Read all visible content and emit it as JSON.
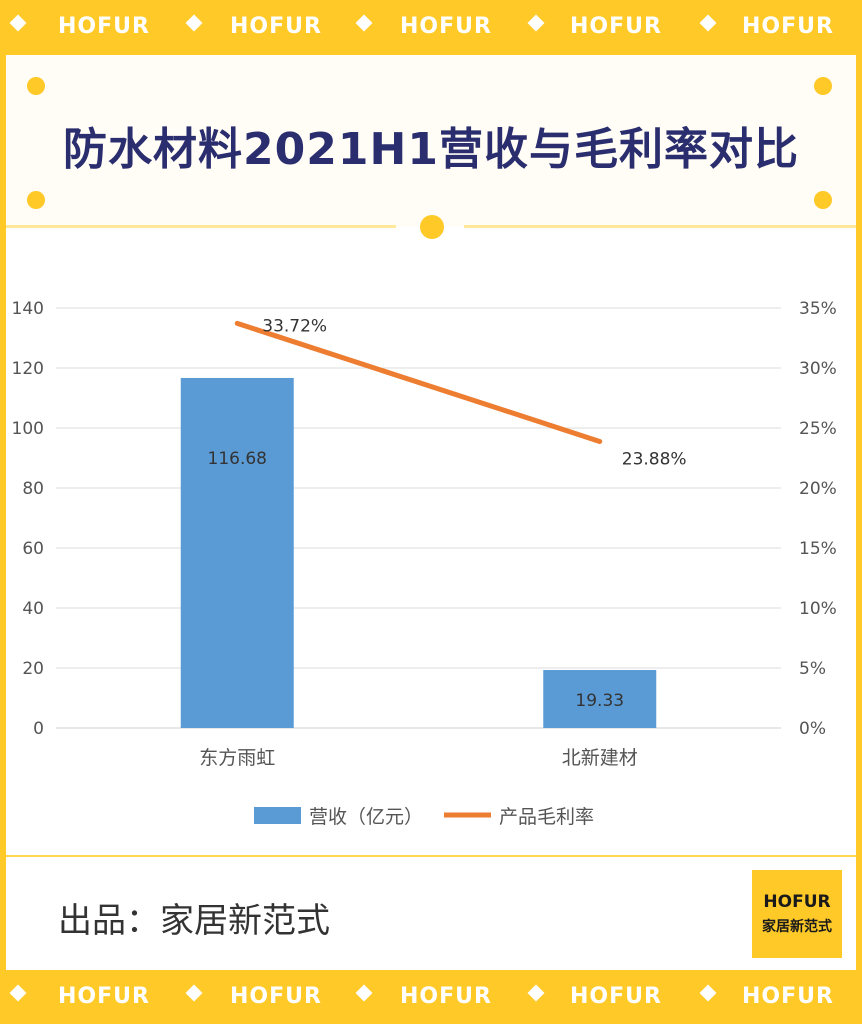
{
  "band": {
    "word": "HOFUR"
  },
  "title": "防水材料2021H1营收与毛利率对比",
  "footer": {
    "credit": "出品：家居新范式",
    "logo_top": "HOFUR",
    "logo_bottom": "家居新范式"
  },
  "colors": {
    "accent": "#FFC928",
    "title": "#2A2D6E",
    "bar": "#5B9BD5",
    "line": "#ED7D31"
  },
  "chart_data": {
    "type": "bar",
    "categories": [
      "东方雨虹",
      "北新建材"
    ],
    "series": [
      {
        "name": "营收（亿元）",
        "type": "bar",
        "axis": "left",
        "values": [
          116.68,
          19.33
        ],
        "labels": [
          "116.68",
          "19.33"
        ]
      },
      {
        "name": "产品毛利率",
        "type": "line",
        "axis": "right",
        "values": [
          33.72,
          23.88
        ],
        "labels": [
          "33.72%",
          "23.88%"
        ]
      }
    ],
    "y_left": {
      "ylim": [
        0,
        140
      ],
      "ticks": [
        "0",
        "20",
        "40",
        "60",
        "80",
        "100",
        "120",
        "140"
      ]
    },
    "y_right": {
      "ylim": [
        0,
        35
      ],
      "ticks": [
        "0%",
        "5%",
        "10%",
        "15%",
        "20%",
        "25%",
        "30%",
        "35%"
      ]
    },
    "grid": true,
    "legend": "bottom"
  }
}
